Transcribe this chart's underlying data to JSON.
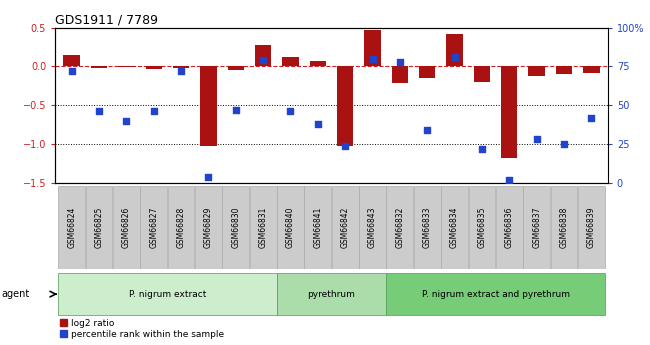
{
  "title": "GDS1911 / 7789",
  "samples": [
    "GSM66824",
    "GSM66825",
    "GSM66826",
    "GSM66827",
    "GSM66828",
    "GSM66829",
    "GSM66830",
    "GSM66831",
    "GSM66840",
    "GSM66841",
    "GSM66842",
    "GSM66843",
    "GSM66832",
    "GSM66833",
    "GSM66834",
    "GSM66835",
    "GSM66836",
    "GSM66837",
    "GSM66838",
    "GSM66839"
  ],
  "log2_ratio": [
    0.15,
    -0.02,
    -0.01,
    -0.03,
    -0.02,
    -1.02,
    -0.05,
    0.27,
    0.12,
    0.07,
    -1.02,
    0.47,
    -0.22,
    -0.15,
    0.42,
    -0.2,
    -1.18,
    -0.12,
    -0.1,
    -0.08
  ],
  "percentile": [
    72,
    46,
    40,
    46,
    72,
    4,
    47,
    79,
    46,
    38,
    24,
    80,
    78,
    34,
    81,
    22,
    2,
    28,
    25,
    42
  ],
  "bar_color": "#aa1111",
  "dot_color": "#2244cc",
  "groups": [
    {
      "label": "P. nigrum extract",
      "start": 0,
      "end": 8,
      "color": "#cceecc"
    },
    {
      "label": "pyrethrum",
      "start": 8,
      "end": 12,
      "color": "#aaddaa"
    },
    {
      "label": "P. nigrum extract and pyrethrum",
      "start": 12,
      "end": 20,
      "color": "#77cc77"
    }
  ],
  "ylim_left": [
    -1.5,
    0.5
  ],
  "ylim_right": [
    0,
    100
  ],
  "yticks_left": [
    -1.5,
    -1.0,
    -0.5,
    0.0,
    0.5
  ],
  "yticks_right": [
    0,
    25,
    50,
    75,
    100
  ],
  "ytick_labels_right": [
    "0",
    "25",
    "50",
    "75",
    "100%"
  ],
  "hlines": [
    -0.5,
    -1.0
  ],
  "legend_items": [
    {
      "label": "log2 ratio",
      "color": "#aa1111"
    },
    {
      "label": "percentile rank within the sample",
      "color": "#2244cc"
    }
  ],
  "agent_label": "agent",
  "background_color": "#ffffff"
}
